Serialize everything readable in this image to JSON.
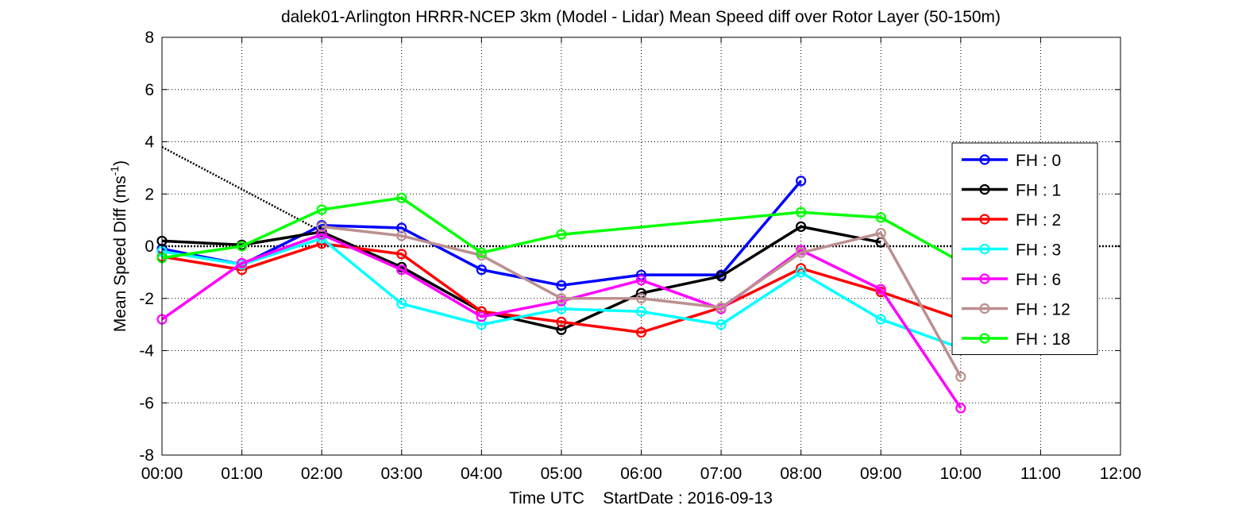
{
  "chart_data": {
    "type": "line",
    "title": "dalek01-Arlington HRRR-NCEP 3km (Model - Lidar) Mean Speed diff over Rotor Layer (50-150m)",
    "xlabel": "Time UTC    StartDate : 2016-09-13",
    "ylabel": "Mean Speed Diff (ms",
    "ylabel_sup": "-1",
    "ylabel_end": ")",
    "x_ticks": [
      "00:00",
      "01:00",
      "02:00",
      "03:00",
      "04:00",
      "05:00",
      "06:00",
      "07:00",
      "08:00",
      "09:00",
      "10:00",
      "11:00",
      "12:00"
    ],
    "y_ticks": [
      8,
      6,
      4,
      2,
      0,
      -2,
      -4,
      -6,
      -8
    ],
    "xlim": [
      0,
      12
    ],
    "ylim": [
      -8,
      8
    ],
    "grid": true,
    "legend_position": "right",
    "series": [
      {
        "name": "FH : 0",
        "color": "#0000ff",
        "x": [
          0,
          1,
          2,
          3,
          4,
          5,
          6,
          7,
          8
        ],
        "y": [
          -0.1,
          -0.7,
          0.8,
          0.7,
          -0.9,
          -1.5,
          -1.1,
          -1.1,
          2.5
        ]
      },
      {
        "name": "FH : 1",
        "color": "#000000",
        "x": [
          0,
          1,
          2,
          3,
          4,
          5,
          6,
          7,
          8,
          9
        ],
        "y": [
          0.2,
          0.05,
          0.55,
          -0.8,
          -2.5,
          -3.2,
          -1.8,
          -1.15,
          0.75,
          0.15
        ]
      },
      {
        "name": "FH : 2",
        "color": "#ff0000",
        "x": [
          0,
          1,
          2,
          3,
          4,
          5,
          6,
          7,
          8,
          9,
          10
        ],
        "y": [
          -0.4,
          -0.9,
          0.1,
          -0.3,
          -2.5,
          -2.9,
          -3.3,
          -2.35,
          -0.85,
          -1.75,
          -2.8
        ]
      },
      {
        "name": "FH : 3",
        "color": "#00ffff",
        "x": [
          0,
          1,
          2,
          3,
          4,
          5,
          6,
          7,
          8,
          9,
          10
        ],
        "y": [
          -0.2,
          -0.7,
          0.3,
          -2.2,
          -3.0,
          -2.4,
          -2.5,
          -3.0,
          -1.0,
          -2.8,
          -3.9
        ]
      },
      {
        "name": "FH : 6",
        "color": "#ff00ff",
        "x": [
          0,
          1,
          2,
          3,
          4,
          5,
          6,
          7,
          8,
          9,
          10
        ],
        "y": [
          -2.8,
          -0.65,
          0.45,
          -0.9,
          -2.7,
          -2.1,
          -1.3,
          -2.4,
          -0.15,
          -1.65,
          -6.2
        ]
      },
      {
        "name": "FH : 12",
        "color": "#bc8f8f",
        "x": [
          2,
          3,
          4,
          5,
          6,
          7,
          8,
          9,
          10
        ],
        "y": [
          0.75,
          0.4,
          -0.35,
          -2.0,
          -2.0,
          -2.35,
          -0.25,
          0.5,
          -5.0
        ]
      },
      {
        "name": "FH : 18",
        "color": "#00ff00",
        "x": [
          0,
          1,
          2,
          3,
          4,
          5,
          8,
          9,
          10
        ],
        "y": [
          -0.45,
          0.0,
          1.4,
          1.85,
          -0.25,
          0.45,
          1.3,
          1.1,
          -0.6
        ]
      }
    ],
    "reference_lines": [
      {
        "style": "dotted",
        "color": "#000000",
        "x": [
          0,
          12
        ],
        "y": [
          0,
          0
        ]
      },
      {
        "style": "dotted",
        "color": "#000000",
        "x": [
          0,
          2.1
        ],
        "y": [
          3.8,
          0.4
        ]
      },
      {
        "style": "dashed",
        "color": "#00ff00",
        "x": [
          5,
          8
        ],
        "y": [
          0.45,
          1.3
        ]
      }
    ]
  }
}
